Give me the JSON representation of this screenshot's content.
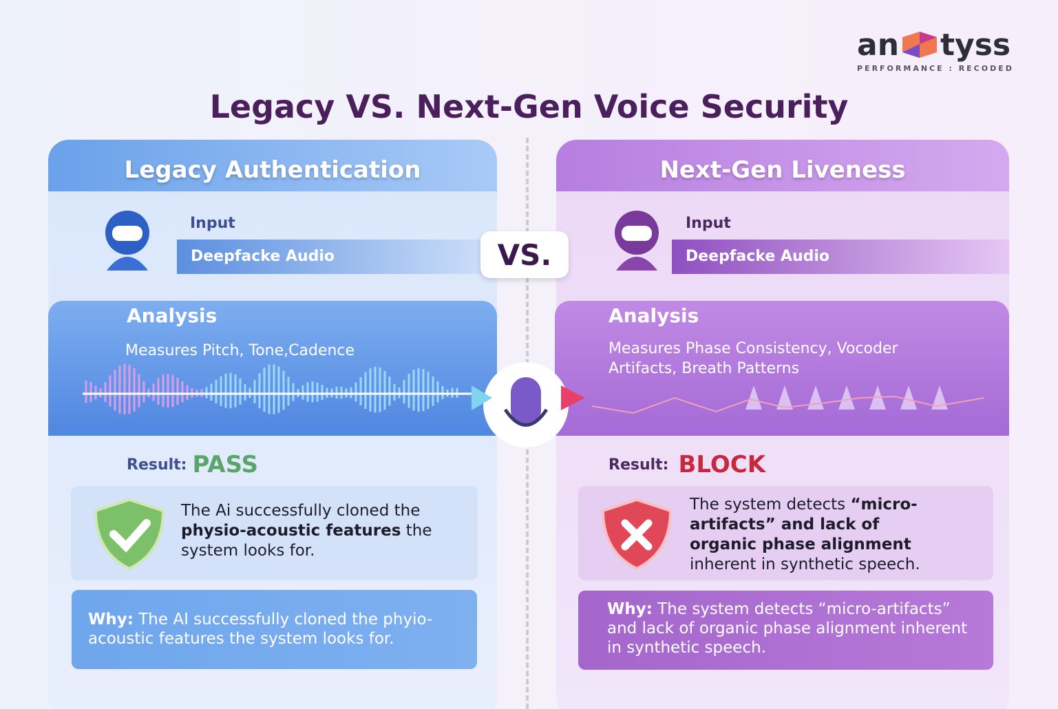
{
  "logo": {
    "left": "an",
    "right": "tyss",
    "tagline": "PERFORMANCE : RECODED"
  },
  "title": "Legacy VS. Next-Gen Voice Security",
  "vs": "VS.",
  "left": {
    "header": "Legacy Authentication",
    "input": {
      "label": "Input",
      "value": "Deepfacke Audio"
    },
    "analysis": {
      "label": "Analysis",
      "text": "Measures Pitch, Tone,Cadence"
    },
    "result": {
      "label": "Result:",
      "value": "PASS"
    },
    "description": [
      "The Ai successfully cloned the ",
      "physio-acoustic features",
      " the system looks for."
    ],
    "why": {
      "label": "Why:",
      "text": " The AI successfully cloned the phyio-acoustic features the system looks for."
    }
  },
  "right": {
    "header": "Next-Gen Liveness",
    "input": {
      "label": "Input",
      "value": "Deepfacke Audio"
    },
    "analysis": {
      "label": "Analysis",
      "text": "Measures Phase Consistency, Vocoder Artifacts, Breath Patterns"
    },
    "result": {
      "label": "Result:",
      "value": "BLOCK"
    },
    "description": [
      "The system detects ",
      "“micro-artifacts” and lack of organic phase alignment",
      " inherent in synthetic speech."
    ],
    "why": {
      "label": "Why:",
      "text": " The system detects “micro-artifacts” and lack of organic phase alignment inherent in synthetic speech."
    }
  }
}
